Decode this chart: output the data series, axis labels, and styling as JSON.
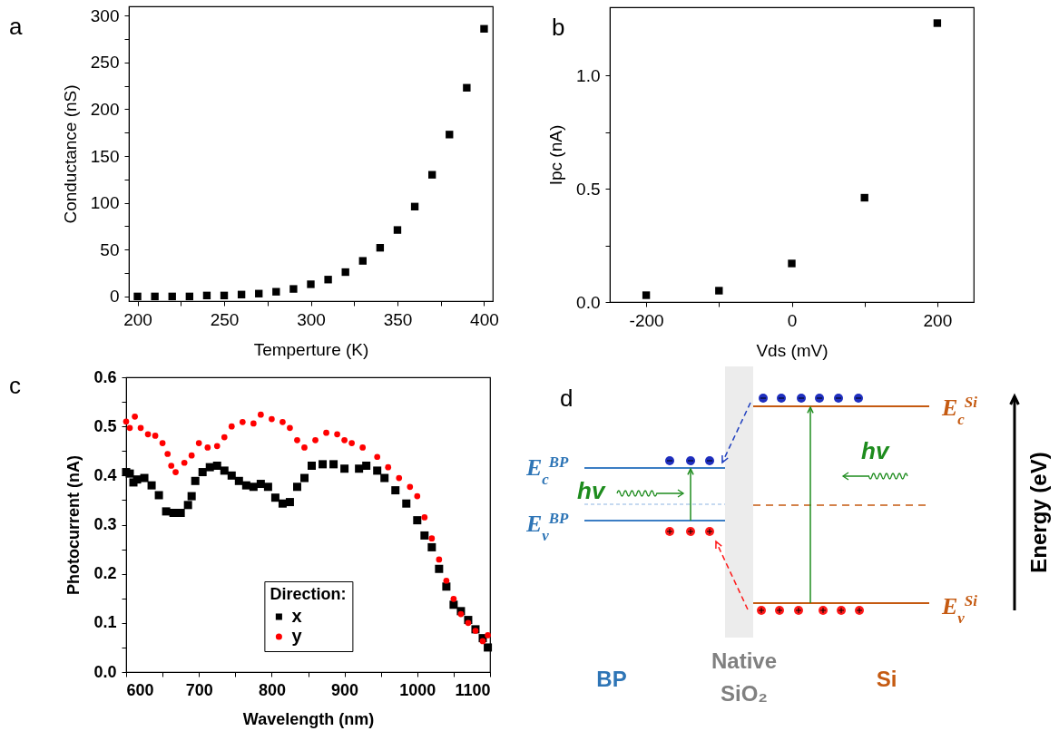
{
  "chart_data": [
    {
      "type": "scatter",
      "title": "a",
      "xlabel": "Temperture (K)",
      "ylabel": "Conductance (nS)",
      "marker": "square",
      "xlim": [
        195,
        405
      ],
      "ylim": [
        -5,
        310
      ],
      "xticks": [
        200,
        {
          "value": 225,
          "label": null
        },
        250,
        {
          "value": 275,
          "label": null
        },
        300,
        {
          "value": 325,
          "label": null
        },
        350,
        {
          "value": 375,
          "label": null
        },
        400
      ],
      "yticks": [
        0,
        {
          "value": 25,
          "label": null
        },
        50,
        {
          "value": 75,
          "label": null
        },
        100,
        {
          "value": 125,
          "label": null
        },
        150,
        {
          "value": 175,
          "label": null
        },
        200,
        {
          "value": 225,
          "label": null
        },
        250,
        {
          "value": 275,
          "label": null
        },
        300
      ],
      "series": [
        {
          "color": "#000000",
          "x": [
            200,
            210,
            220,
            230,
            240,
            250,
            260,
            270,
            280,
            290,
            300,
            310,
            320,
            330,
            340,
            350,
            360,
            370,
            380,
            390,
            400
          ],
          "values": [
            0,
            0,
            0,
            0,
            1,
            1,
            2,
            3,
            5,
            8,
            13,
            18,
            26,
            38,
            52,
            71,
            96,
            130,
            173,
            223,
            286
          ]
        }
      ]
    },
    {
      "type": "scatter",
      "title": "b",
      "xlabel": "Vds (mV)",
      "ylabel": "Ipc (nA)",
      "marker": "square",
      "xlim": [
        -250,
        250
      ],
      "ylim": [
        0,
        1.3
      ],
      "xticks": [
        -200,
        {
          "value": -100,
          "label": null
        },
        0,
        {
          "value": 100,
          "label": null
        },
        200
      ],
      "yticks": [
        {
          "value": 0,
          "label": "0.0"
        },
        {
          "value": 0.25,
          "label": null
        },
        0.5,
        {
          "value": 0.75,
          "label": null
        },
        {
          "value": 1,
          "label": "1.0"
        }
      ],
      "series": [
        {
          "color": "#000000",
          "x": [
            -200,
            -100,
            0,
            100,
            200
          ],
          "values": [
            0.03,
            0.05,
            0.17,
            0.46,
            1.23
          ]
        }
      ]
    },
    {
      "type": "scatter",
      "title": "c",
      "xlabel": "Wavelength (nm)",
      "ylabel": "Photocurrent (nA)",
      "legend_title": "Direction:",
      "legend": "bottom",
      "xlim": [
        600,
        1100
      ],
      "ylim": [
        0,
        0.6
      ],
      "xticks": [
        600,
        {
          "value": 650,
          "label": null
        },
        700,
        {
          "value": 750,
          "label": null
        },
        800,
        {
          "value": 850,
          "label": null
        },
        900,
        {
          "value": 950,
          "label": null
        },
        1000,
        {
          "value": 1050,
          "label": null
        },
        1100
      ],
      "yticks": [
        {
          "value": 0,
          "label": "0.0"
        },
        {
          "value": 0.05,
          "label": null
        },
        0.1,
        {
          "value": 0.15,
          "label": null
        },
        0.2,
        {
          "value": 0.25,
          "label": null
        },
        0.3,
        {
          "value": 0.35,
          "label": null
        },
        0.4,
        {
          "value": 0.45,
          "label": null
        },
        0.5,
        {
          "value": 0.55,
          "label": null
        },
        0.6
      ],
      "series": [
        {
          "name": "x",
          "color": "#000000",
          "marker": "square",
          "x": [
            600,
            605,
            610,
            615,
            625,
            635,
            645,
            655,
            665,
            675,
            685,
            690,
            695,
            705,
            715,
            725,
            735,
            745,
            755,
            765,
            775,
            785,
            795,
            805,
            815,
            825,
            835,
            845,
            855,
            870,
            885,
            900,
            920,
            930,
            945,
            955,
            970,
            985,
            1000,
            1010,
            1020,
            1030,
            1040,
            1050,
            1060,
            1070,
            1080,
            1090,
            1097
          ],
          "values": [
            0.407,
            0.404,
            0.386,
            0.392,
            0.395,
            0.38,
            0.36,
            0.327,
            0.324,
            0.324,
            0.34,
            0.358,
            0.389,
            0.407,
            0.417,
            0.42,
            0.41,
            0.4,
            0.389,
            0.38,
            0.377,
            0.383,
            0.377,
            0.355,
            0.343,
            0.346,
            0.377,
            0.395,
            0.42,
            0.423,
            0.423,
            0.414,
            0.414,
            0.42,
            0.41,
            0.395,
            0.37,
            0.343,
            0.309,
            0.278,
            0.254,
            0.21,
            0.174,
            0.137,
            0.124,
            0.106,
            0.087,
            0.069,
            0.05
          ]
        },
        {
          "name": "y",
          "color": "#ff0000",
          "marker": "circle",
          "x": [
            600,
            605,
            612,
            620,
            630,
            640,
            650,
            657,
            662,
            668,
            680,
            690,
            700,
            712,
            725,
            735,
            745,
            760,
            775,
            785,
            800,
            815,
            825,
            835,
            845,
            860,
            875,
            890,
            900,
            910,
            925,
            945,
            960,
            975,
            990,
            1000,
            1010,
            1020,
            1030,
            1040,
            1050,
            1060,
            1070,
            1080,
            1090,
            1097
          ],
          "values": [
            0.51,
            0.497,
            0.52,
            0.497,
            0.484,
            0.481,
            0.466,
            0.444,
            0.42,
            0.407,
            0.426,
            0.441,
            0.466,
            0.457,
            0.46,
            0.478,
            0.5,
            0.509,
            0.506,
            0.524,
            0.515,
            0.509,
            0.497,
            0.472,
            0.457,
            0.472,
            0.487,
            0.484,
            0.472,
            0.466,
            0.457,
            0.438,
            0.417,
            0.395,
            0.377,
            0.358,
            0.315,
            0.272,
            0.229,
            0.186,
            0.149,
            0.118,
            0.1,
            0.084,
            0.063,
            0.075
          ]
        }
      ]
    },
    {
      "type": "other",
      "title": "d",
      "annotations": [
        "E$_{c}$$^{BP}$",
        "E$_{v}$$^{BP}$",
        "hv",
        "hv",
        "E$_{c}$$^{Si}$",
        "E$_{v}$$^{Si}$",
        "Energy (eV)",
        "BP",
        "Native SiO₂",
        "Si"
      ]
    }
  ]
}
